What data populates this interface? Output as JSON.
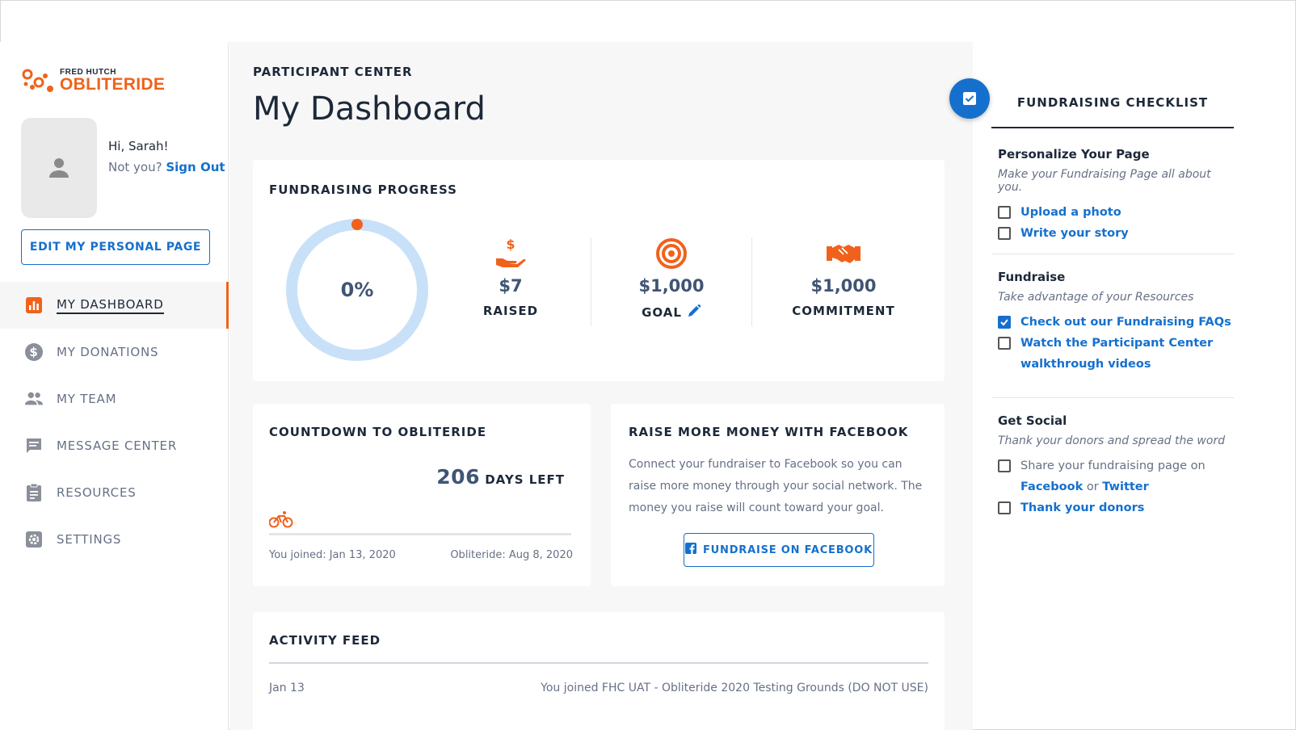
{
  "brand": {
    "small": "FRED HUTCH",
    "name": "OBLITERIDE",
    "color": "#f0621b"
  },
  "user": {
    "greeting": "Hi, Sarah!",
    "not_you": "Not you?",
    "sign_out": "Sign Out"
  },
  "sidebar": {
    "edit_button": "EDIT MY PERSONAL PAGE",
    "items": [
      {
        "label": "MY DASHBOARD",
        "icon": "bar-chart-icon",
        "active": true
      },
      {
        "label": "MY DONATIONS",
        "icon": "dollar-circle-icon"
      },
      {
        "label": "MY TEAM",
        "icon": "people-icon"
      },
      {
        "label": "MESSAGE CENTER",
        "icon": "message-icon"
      },
      {
        "label": "RESOURCES",
        "icon": "clipboard-icon"
      },
      {
        "label": "SETTINGS",
        "icon": "gear-icon"
      }
    ]
  },
  "main": {
    "section": "PARTICIPANT CENTER",
    "title": "My Dashboard",
    "progress": {
      "heading": "FUNDRAISING PROGRESS",
      "percent": "0%",
      "percent_value": 0,
      "raised_value": "$7",
      "raised_label": "RAISED",
      "goal_value": "$1,000",
      "goal_label": "GOAL",
      "commitment_value": "$1,000",
      "commitment_label": "COMMITMENT"
    },
    "countdown": {
      "heading": "COUNTDOWN TO OBLITERIDE",
      "days": "206",
      "days_label": "DAYS LEFT",
      "joined": "You joined: Jan 13, 2020",
      "event": "Obliteride: Aug 8, 2020"
    },
    "facebook": {
      "heading": "RAISE MORE MONEY WITH FACEBOOK",
      "text": "Connect your fundraiser to Facebook so you can raise more money through your social network. The money you raise will count toward your goal.",
      "button": "FUNDRAISE ON FACEBOOK"
    },
    "feed": {
      "heading": "ACTIVITY FEED",
      "items": [
        {
          "date": "Jan 13",
          "text": "You joined FHC UAT - Obliteride 2020 Testing Grounds (DO NOT USE)"
        }
      ]
    }
  },
  "checklist": {
    "heading": "FUNDRAISING CHECKLIST",
    "sections": [
      {
        "title": "Personalize Your Page",
        "desc": "Make your Fundraising Page all about you.",
        "items": [
          {
            "label": "Upload a photo",
            "checked": false
          },
          {
            "label": "Write your story",
            "checked": false
          }
        ]
      },
      {
        "title": "Fundraise",
        "desc": "Take advantage of your Resources",
        "items": [
          {
            "label": "Check out our Fundraising FAQs",
            "checked": true
          },
          {
            "label": "Watch the Participant Center walkthrough videos",
            "checked": false
          }
        ]
      },
      {
        "title": "Get Social",
        "desc": "Thank your donors and spread the word",
        "items": [
          {
            "prefix": "Share your fundraising page on",
            "link1": "Facebook",
            "or": "or",
            "link2": "Twitter",
            "checked": false
          },
          {
            "label": "Thank your donors",
            "checked": false
          }
        ]
      }
    ]
  },
  "colors": {
    "accent": "#1570cd",
    "brand": "#f0621b",
    "ring": "#c8e1f8"
  }
}
